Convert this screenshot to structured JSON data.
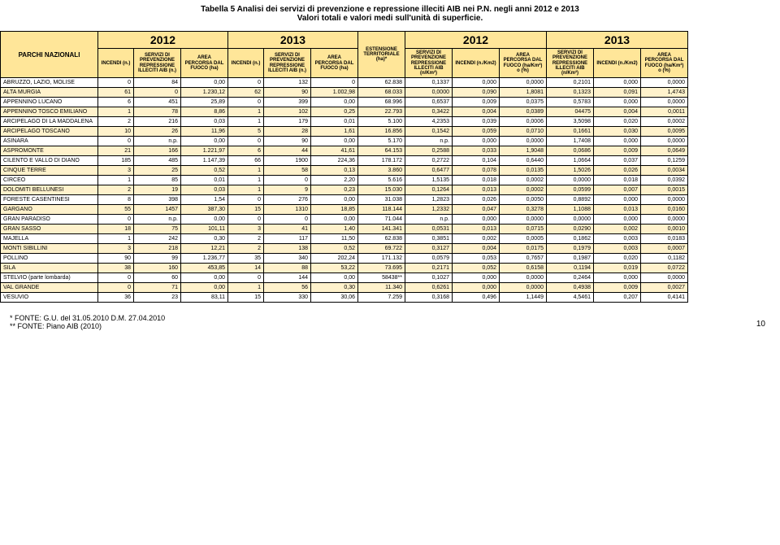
{
  "title": "Tabella 5  Analisi dei servizi di prevenzione e repressione illeciti AIB nei P.N. negli anni 2012 e 2013",
  "subtitle": "Valori totali e valori medi sull'unità di superficie.",
  "footnote1": "*  FONTE: G.U. del 31.05.2010 D.M. 27.04.2010",
  "footnote2": "** FONTE: Piano AIB (2010)",
  "pagenum": "10",
  "years": {
    "a": "2012",
    "b": "2013",
    "c": "2012",
    "d": "2013"
  },
  "head": {
    "parchi": "PARCHI NAZIONALI",
    "incendi_n": "INCENDI (n.)",
    "servizi": "SERVIZI DI PREVENZIONE REPRESSIONE ILLECITI AIB (n.)",
    "area_ha": "AREA PERCORSA DAL FUOCO (ha)",
    "estensione": "ESTENSIONE TERRITORIALE (ha)*",
    "servizi_km": "SERVIZI DI PREVENZIONE REPRESSIONE ILLECITI AIB (n/Km²)",
    "incendi_km": "INCENDI (n./Km2)",
    "area_km": "AREA PERCORSA DAL FUOCO (ha/Km²) o (%)",
    "servizi_km2": "SERVIZI DI PREVENZIONE REPRESSIONE ILLECITI AIB (n/Km²)"
  },
  "rows": [
    {
      "name": "ABRUZZO, LAZIO, MOLISE",
      "c": [
        "0",
        "84",
        "0,00",
        "0",
        "132",
        "0",
        "62.838",
        "0,1337",
        "0,000",
        "0,0000",
        "0,2101",
        "0,000",
        "0,0000"
      ]
    },
    {
      "name": "ALTA MURGIA",
      "c": [
        "61",
        "0",
        "1.230,12",
        "62",
        "90",
        "1.002,98",
        "68.033",
        "0,0000",
        "0,090",
        "1,8081",
        "0,1323",
        "0,091",
        "1,4743"
      ]
    },
    {
      "name": "APPENNINO LUCANO",
      "c": [
        "6",
        "451",
        "25,89",
        "0",
        "399",
        "0,00",
        "68.996",
        "0,6537",
        "0,009",
        "0,0375",
        "0,5783",
        "0,000",
        "0,0000"
      ]
    },
    {
      "name": "APPENNINO TOSCO EMILIANO",
      "c": [
        "1",
        "78",
        "8,86",
        "1",
        "102",
        "0,25",
        "22.793",
        "0,3422",
        "0,004",
        "0,0389",
        "04475",
        "0,004",
        "0,0011"
      ]
    },
    {
      "name": "ARCIPELAGO DI LA MADDALENA",
      "c": [
        "2",
        "216",
        "0,03",
        "1",
        "179",
        "0,01",
        "5.100",
        "4,2353",
        "0,039",
        "0,0006",
        "3,5098",
        "0,020",
        "0,0002"
      ]
    },
    {
      "name": "ARCIPELAGO TOSCANO",
      "c": [
        "10",
        "26",
        "11,96",
        "5",
        "28",
        "1,61",
        "16.856",
        "0,1542",
        "0,059",
        "0,0710",
        "0,1661",
        "0,030",
        "0,0095"
      ]
    },
    {
      "name": "ASINARA",
      "c": [
        "0",
        "n.p.",
        "0,00",
        "0",
        "90",
        "0,00",
        "5.170",
        "n.p.",
        "0,000",
        "0,0000",
        "1,7408",
        "0,000",
        "0,0000"
      ]
    },
    {
      "name": "ASPROMONTE",
      "c": [
        "21",
        "166",
        "1.221,97",
        "6",
        "44",
        "41,61",
        "64.153",
        "0,2588",
        "0,033",
        "1,9048",
        "0,0686",
        "0,009",
        "0,0649"
      ]
    },
    {
      "name": "CILENTO E VALLO DI DIANO",
      "c": [
        "185",
        "485",
        "1.147,39",
        "66",
        "1900",
        "224,36",
        "178.172",
        "0,2722",
        "0,104",
        "0,6440",
        "1,0664",
        "0,037",
        "0,1259"
      ]
    },
    {
      "name": "CINQUE TERRE",
      "c": [
        "3",
        "25",
        "0,52",
        "1",
        "58",
        "0,13",
        "3.860",
        "0,6477",
        "0,078",
        "0,0135",
        "1,5026",
        "0,026",
        "0,0034"
      ]
    },
    {
      "name": "CIRCEO",
      "c": [
        "1",
        "85",
        "0,01",
        "1",
        "0",
        "2,20",
        "5.616",
        "1,5135",
        "0,018",
        "0,0002",
        "0,0000",
        "0,018",
        "0,0392"
      ]
    },
    {
      "name": "DOLOMITI BELLUNESI",
      "c": [
        "2",
        "19",
        "0,03",
        "1",
        "9",
        "0,23",
        "15.030",
        "0,1264",
        "0,013",
        "0,0002",
        "0,0599",
        "0,007",
        "0,0015"
      ]
    },
    {
      "name": "FORESTE CASENTINESI",
      "c": [
        "8",
        "398",
        "1,54",
        "0",
        "276",
        "0,00",
        "31.038",
        "1,2823",
        "0,026",
        "0,0050",
        "0,8892",
        "0,000",
        "0,0000"
      ]
    },
    {
      "name": "GARGANO",
      "c": [
        "55",
        "1457",
        "387,30",
        "15",
        "1310",
        "18,85",
        "118.144",
        "1,2332",
        "0,047",
        "0,3278",
        "1,1088",
        "0,013",
        "0,0160"
      ]
    },
    {
      "name": "GRAN PARADISO",
      "c": [
        "0",
        "n.p.",
        "0,00",
        "0",
        "0",
        "0,00",
        "71.044",
        "n.p.",
        "0,000",
        "0,0000",
        "0,0000",
        "0,000",
        "0,0000"
      ]
    },
    {
      "name": "GRAN SASSO",
      "c": [
        "18",
        "75",
        "101,11",
        "3",
        "41",
        "1,40",
        "141.341",
        "0,0531",
        "0,013",
        "0,0715",
        "0,0290",
        "0,002",
        "0,0010"
      ]
    },
    {
      "name": "MAJELLA",
      "c": [
        "1",
        "242",
        "0,30",
        "2",
        "117",
        "11,50",
        "62.838",
        "0,3851",
        "0,002",
        "0,0005",
        "0,1862",
        "0,003",
        "0,0183"
      ]
    },
    {
      "name": "MONTI SIBILLINI",
      "c": [
        "3",
        "218",
        "12,21",
        "2",
        "138",
        "0,52",
        "69.722",
        "0,3127",
        "0,004",
        "0,0175",
        "0,1979",
        "0,003",
        "0,0007"
      ]
    },
    {
      "name": "POLLINO",
      "c": [
        "90",
        "99",
        "1.236,77",
        "35",
        "340",
        "202,24",
        "171.132",
        "0,0579",
        "0,053",
        "0,7657",
        "0,1987",
        "0,020",
        "0,1182"
      ]
    },
    {
      "name": "SILA",
      "c": [
        "38",
        "160",
        "453,85",
        "14",
        "88",
        "53,22",
        "73.695",
        "0,2171",
        "0,052",
        "0,6158",
        "0,1194",
        "0,019",
        "0,0722"
      ]
    },
    {
      "name": "STELVIO (parte lombarda)",
      "c": [
        "0",
        "60",
        "0,00",
        "0",
        "144",
        "0,00",
        "58438**",
        "0,1027",
        "0,000",
        "0,0000",
        "0,2464",
        "0,000",
        "0,0000"
      ]
    },
    {
      "name": "VAL GRANDE",
      "c": [
        "0",
        "71",
        "0,00",
        "1",
        "56",
        "0,30",
        "11.340",
        "0,6261",
        "0,000",
        "0,0000",
        "0,4938",
        "0,009",
        "0,0027"
      ]
    },
    {
      "name": "VESUVIO",
      "c": [
        "36",
        "23",
        "83,11",
        "15",
        "330",
        "30,06",
        "7.259",
        "0,3168",
        "0,496",
        "1,1449",
        "4,5461",
        "0,207",
        "0,4141"
      ]
    }
  ],
  "style": {
    "header_bg": "#ffe699",
    "row_alt_bg": "#fff2cc",
    "border": "#000000"
  }
}
